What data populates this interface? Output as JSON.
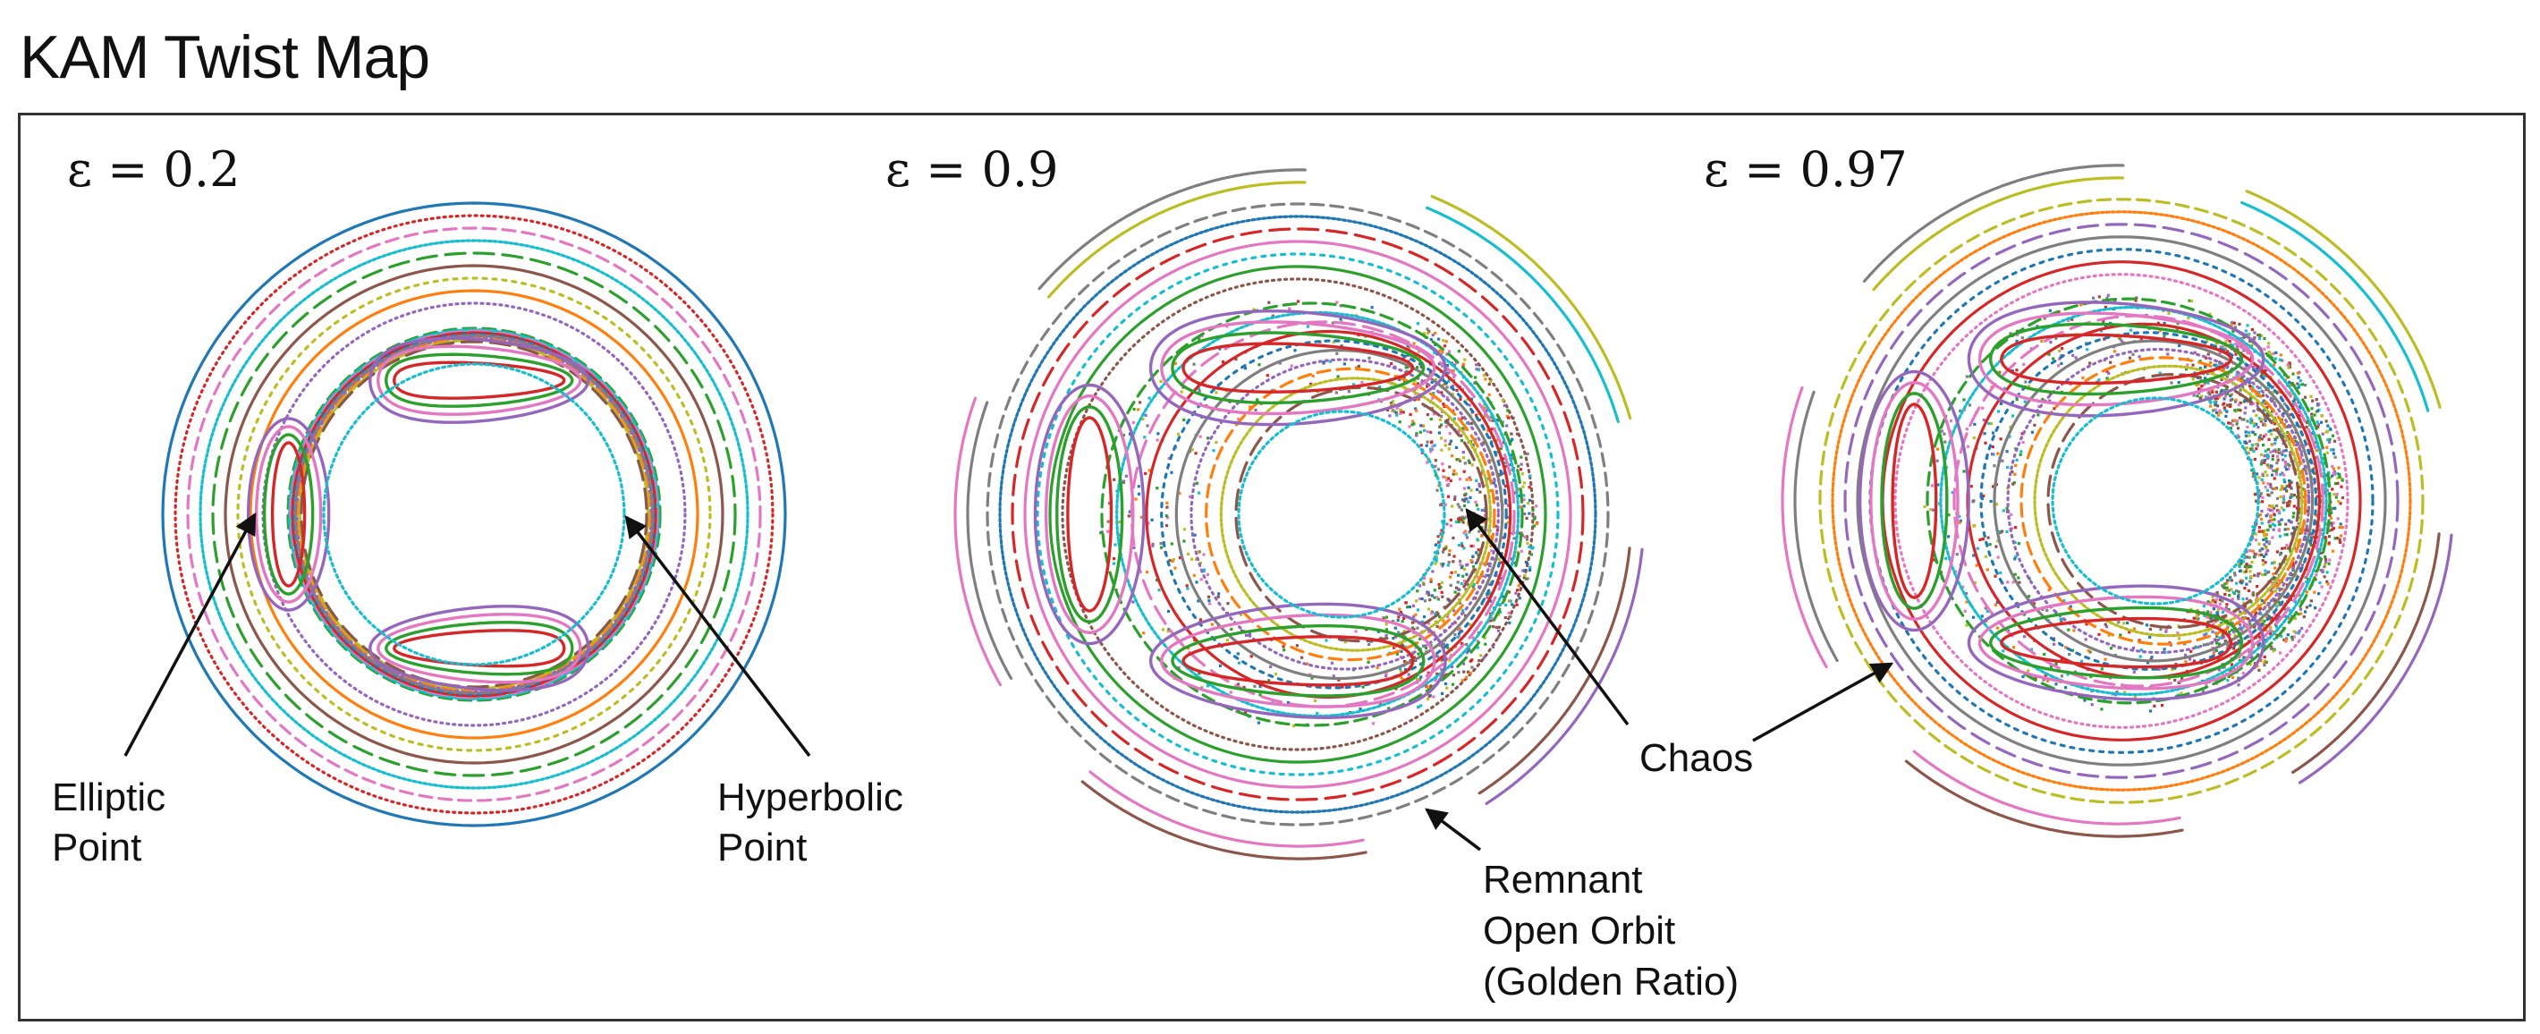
{
  "title": "KAM Twist Map",
  "colors": [
    "#1f77b4",
    "#ff7f0e",
    "#2ca02c",
    "#d62728",
    "#9467bd",
    "#8c564b",
    "#e377c2",
    "#7f7f7f",
    "#bcbd22",
    "#17becf"
  ],
  "panels": [
    {
      "label": "ε = 0.2",
      "epsilon": 0.2,
      "annotations": [
        {
          "lines": [
            "Elliptic",
            "Point"
          ]
        },
        {
          "lines": [
            "Hyperbolic",
            "Point"
          ]
        }
      ]
    },
    {
      "label": "ε = 0.9",
      "epsilon": 0.9,
      "annotations": [
        {
          "lines": [
            "Remnant",
            "Open Orbit",
            "(Golden Ratio)"
          ]
        }
      ]
    },
    {
      "label": "ε = 0.97",
      "epsilon": 0.97,
      "annotations": [
        {
          "lines": [
            "Chaos"
          ]
        }
      ]
    }
  ]
}
